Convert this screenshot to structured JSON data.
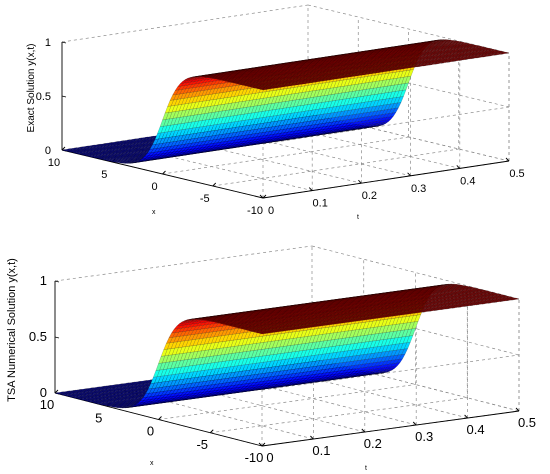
{
  "chart_data": [
    {
      "type": "surface",
      "zlabel": "Exact Solution y(x,t)",
      "xlabel": "x",
      "tlabel": "t",
      "x_range": [
        -10,
        10
      ],
      "t_range": [
        0,
        0.5
      ],
      "z_range": [
        0,
        1
      ],
      "x_ticks": [
        "10",
        "5",
        "0",
        "-5",
        "-10"
      ],
      "t_ticks": [
        "0",
        "0.1",
        "0.2",
        "0.3",
        "0.4",
        "0.5"
      ],
      "z_ticks": [
        "0",
        "0.5",
        "1"
      ],
      "grid": true,
      "colormap": "jet",
      "surface_profile": {
        "type": "kink",
        "center_x": 0,
        "width": 1.5,
        "low": 0,
        "high": 1
      }
    },
    {
      "type": "surface",
      "zlabel": "TSA Numerical Solution y(x,t)",
      "xlabel": "x",
      "tlabel": "t",
      "x_range": [
        -10,
        10
      ],
      "t_range": [
        0,
        0.5
      ],
      "z_range": [
        0,
        1
      ],
      "x_ticks": [
        "10",
        "5",
        "0",
        "-5",
        "-10"
      ],
      "t_ticks": [
        "0",
        "0.1",
        "0.2",
        "0.3",
        "0.4",
        "0.5"
      ],
      "z_ticks": [
        "0",
        "0.5",
        "1"
      ],
      "grid": true,
      "colormap": "jet",
      "surface_profile": {
        "type": "kink",
        "center_x": 0,
        "width": 1.5,
        "low": 0,
        "high": 1
      }
    }
  ]
}
